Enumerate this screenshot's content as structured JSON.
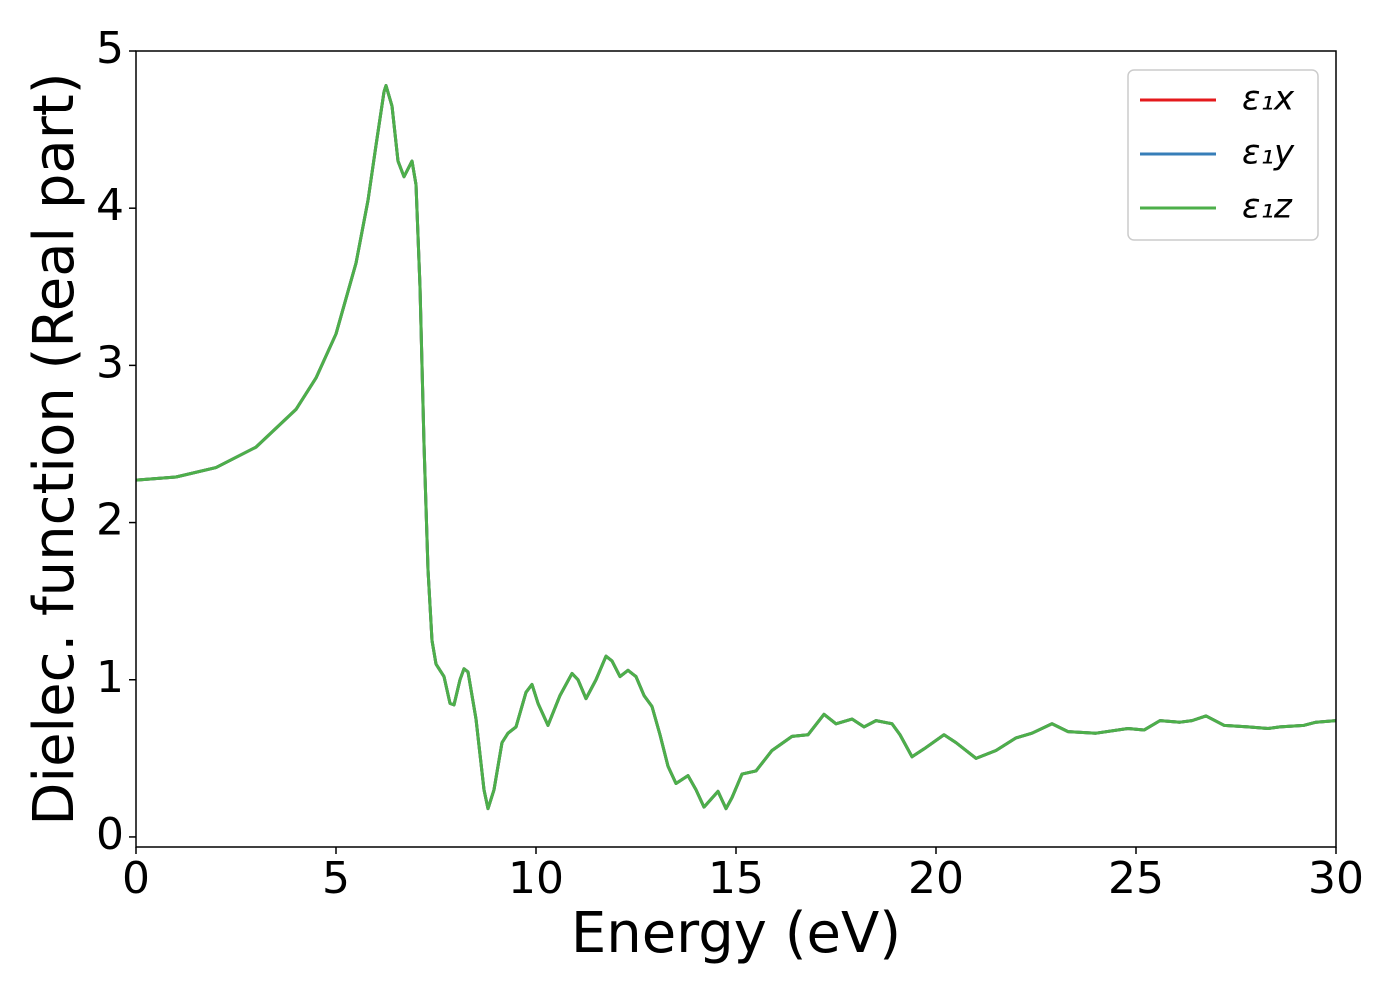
{
  "chart_data": {
    "type": "line",
    "xlabel": "Energy (eV)",
    "ylabel": "Dielec. function (Real part)",
    "x": [
      0,
      1,
      2,
      3,
      4,
      4.5,
      5,
      5.5,
      5.8,
      6.0,
      6.2,
      6.25,
      6.4,
      6.55,
      6.7,
      6.8,
      6.9,
      7.0,
      7.1,
      7.2,
      7.3,
      7.4,
      7.5,
      7.7,
      7.85,
      7.95,
      8.1,
      8.2,
      8.3,
      8.5,
      8.7,
      8.8,
      8.95,
      9.15,
      9.3,
      9.5,
      9.75,
      9.9,
      10.05,
      10.3,
      10.6,
      10.9,
      11.05,
      11.25,
      11.5,
      11.75,
      11.9,
      12.1,
      12.3,
      12.5,
      12.7,
      12.9,
      13.1,
      13.3,
      13.5,
      13.8,
      14.0,
      14.2,
      14.55,
      14.75,
      14.9,
      15.15,
      15.5,
      15.9,
      16.4,
      16.8,
      17.2,
      17.5,
      17.9,
      18.2,
      18.5,
      18.9,
      19.1,
      19.4,
      19.7,
      20.2,
      20.5,
      21.0,
      21.5,
      22.0,
      22.4,
      22.9,
      23.3,
      24.0,
      24.8,
      25.2,
      25.6,
      26.1,
      26.4,
      26.75,
      27.2,
      27.8,
      28.3,
      28.6,
      29.2,
      29.5,
      30
    ],
    "series": [
      {
        "name": "ε₁x",
        "color": "#e41a1c",
        "values": [
          2.27,
          2.29,
          2.35,
          2.48,
          2.72,
          2.92,
          3.2,
          3.65,
          4.05,
          4.4,
          4.74,
          4.78,
          4.65,
          4.3,
          4.2,
          4.25,
          4.3,
          4.15,
          3.5,
          2.5,
          1.7,
          1.25,
          1.1,
          1.02,
          0.85,
          0.84,
          1.0,
          1.07,
          1.05,
          0.75,
          0.3,
          0.18,
          0.3,
          0.6,
          0.66,
          0.7,
          0.92,
          0.97,
          0.85,
          0.71,
          0.9,
          1.04,
          1.0,
          0.88,
          1.0,
          1.15,
          1.12,
          1.02,
          1.06,
          1.02,
          0.9,
          0.83,
          0.65,
          0.45,
          0.34,
          0.39,
          0.3,
          0.19,
          0.29,
          0.18,
          0.25,
          0.4,
          0.42,
          0.55,
          0.64,
          0.65,
          0.78,
          0.72,
          0.75,
          0.7,
          0.74,
          0.72,
          0.65,
          0.51,
          0.56,
          0.65,
          0.6,
          0.5,
          0.55,
          0.63,
          0.66,
          0.72,
          0.67,
          0.66,
          0.69,
          0.68,
          0.74,
          0.73,
          0.74,
          0.77,
          0.71,
          0.7,
          0.69,
          0.7,
          0.71,
          0.73,
          0.74
        ]
      },
      {
        "name": "ε₁y",
        "color": "#377eb8",
        "values": [
          2.27,
          2.29,
          2.35,
          2.48,
          2.72,
          2.92,
          3.2,
          3.65,
          4.05,
          4.4,
          4.74,
          4.78,
          4.65,
          4.3,
          4.2,
          4.25,
          4.3,
          4.15,
          3.5,
          2.5,
          1.7,
          1.25,
          1.1,
          1.02,
          0.85,
          0.84,
          1.0,
          1.07,
          1.05,
          0.75,
          0.3,
          0.18,
          0.3,
          0.6,
          0.66,
          0.7,
          0.92,
          0.97,
          0.85,
          0.71,
          0.9,
          1.04,
          1.0,
          0.88,
          1.0,
          1.15,
          1.12,
          1.02,
          1.06,
          1.02,
          0.9,
          0.83,
          0.65,
          0.45,
          0.34,
          0.39,
          0.3,
          0.19,
          0.29,
          0.18,
          0.25,
          0.4,
          0.42,
          0.55,
          0.64,
          0.65,
          0.78,
          0.72,
          0.75,
          0.7,
          0.74,
          0.72,
          0.65,
          0.51,
          0.56,
          0.65,
          0.6,
          0.5,
          0.55,
          0.63,
          0.66,
          0.72,
          0.67,
          0.66,
          0.69,
          0.68,
          0.74,
          0.73,
          0.74,
          0.77,
          0.71,
          0.7,
          0.69,
          0.7,
          0.71,
          0.73,
          0.74
        ]
      },
      {
        "name": "ε₁z",
        "color": "#4daf4a",
        "values": [
          2.27,
          2.29,
          2.35,
          2.48,
          2.72,
          2.92,
          3.2,
          3.65,
          4.05,
          4.4,
          4.74,
          4.78,
          4.65,
          4.3,
          4.2,
          4.25,
          4.3,
          4.15,
          3.5,
          2.5,
          1.7,
          1.25,
          1.1,
          1.02,
          0.85,
          0.84,
          1.0,
          1.07,
          1.05,
          0.75,
          0.3,
          0.18,
          0.3,
          0.6,
          0.66,
          0.7,
          0.92,
          0.97,
          0.85,
          0.71,
          0.9,
          1.04,
          1.0,
          0.88,
          1.0,
          1.15,
          1.12,
          1.02,
          1.06,
          1.02,
          0.9,
          0.83,
          0.65,
          0.45,
          0.34,
          0.39,
          0.3,
          0.19,
          0.29,
          0.18,
          0.25,
          0.4,
          0.42,
          0.55,
          0.64,
          0.65,
          0.78,
          0.72,
          0.75,
          0.7,
          0.74,
          0.72,
          0.65,
          0.51,
          0.56,
          0.65,
          0.6,
          0.5,
          0.55,
          0.63,
          0.66,
          0.72,
          0.67,
          0.66,
          0.69,
          0.68,
          0.74,
          0.73,
          0.74,
          0.77,
          0.71,
          0.7,
          0.69,
          0.7,
          0.71,
          0.73,
          0.74
        ]
      }
    ],
    "xlim": [
      0,
      30
    ],
    "xticks": [
      0,
      5,
      10,
      15,
      20,
      25,
      30
    ],
    "ylim": [
      -0.064,
      5
    ],
    "yticks": [
      0,
      1,
      2,
      3,
      4,
      5
    ],
    "grid": false,
    "legend": "upper right"
  }
}
